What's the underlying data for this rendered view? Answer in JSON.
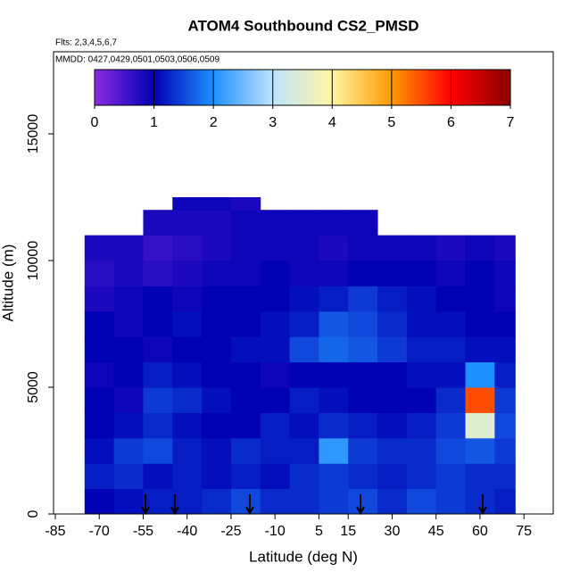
{
  "chart_data": {
    "type": "heatmap",
    "title": "ATOM4 Southbound CS2_PMSD",
    "subtitle": "Flts: 2,3,4,5,6,7",
    "annotation": "MMDD: 0427,0429,0501,0503,0506,0509",
    "x_label": "Latitude (deg N)",
    "y_label": "Altitude (m)",
    "xlim": [
      -85.6,
      85
    ],
    "ylim": [
      0,
      18240
    ],
    "xticks": [
      -85,
      -70,
      -55,
      -40,
      -25,
      -10,
      5,
      15,
      30,
      45,
      60,
      75
    ],
    "yticks": [
      0,
      5000,
      10000,
      15000
    ],
    "x_edges": [
      -75,
      -65,
      -55,
      -45,
      -35,
      -25,
      -15,
      -5,
      5,
      15,
      25,
      35,
      45,
      55,
      65,
      72
    ],
    "y_edges": [
      0,
      1000,
      2000,
      3000,
      4000,
      5000,
      6000,
      7000,
      8000,
      9000,
      10000,
      11000,
      12000,
      12500
    ],
    "z": [
      [
        1.0,
        1.1,
        1.2,
        1.2,
        1.3,
        1.5,
        1.3,
        1.3,
        1.4,
        1.5,
        1.3,
        1.5,
        1.4,
        1.3,
        1.2
      ],
      [
        1.2,
        1.3,
        1.1,
        1.2,
        1.1,
        1.2,
        1.1,
        1.3,
        1.4,
        1.3,
        1.2,
        1.3,
        1.4,
        1.3,
        1.3
      ],
      [
        1.1,
        1.4,
        1.5,
        1.2,
        1.1,
        1.3,
        1.2,
        1.2,
        2.1,
        1.4,
        1.3,
        1.3,
        1.5,
        1.6,
        1.4
      ],
      [
        1.0,
        1.1,
        1.3,
        1.1,
        1.0,
        1.0,
        1.2,
        1.1,
        1.3,
        1.2,
        1.1,
        1.2,
        1.4,
        3.5,
        1.5
      ],
      [
        1.0,
        0.9,
        1.4,
        1.3,
        1.1,
        1.0,
        1.0,
        1.2,
        1.1,
        1.0,
        1.0,
        1.0,
        1.3,
        5.5,
        1.4
      ],
      [
        0.9,
        1.0,
        1.2,
        1.1,
        1.0,
        1.0,
        0.9,
        1.0,
        1.0,
        1.0,
        1.0,
        1.1,
        1.1,
        2.0,
        1.2
      ],
      [
        1.0,
        1.0,
        0.9,
        1.0,
        1.0,
        1.1,
        1.1,
        1.5,
        1.7,
        1.6,
        1.4,
        1.2,
        1.2,
        1.1,
        1.1
      ],
      [
        1.0,
        0.9,
        1.0,
        1.1,
        1.0,
        1.0,
        1.1,
        1.2,
        1.6,
        1.5,
        1.3,
        1.1,
        1.1,
        1.0,
        1.0
      ],
      [
        0.8,
        0.9,
        1.0,
        0.9,
        1.0,
        1.0,
        1.0,
        1.1,
        1.2,
        1.4,
        1.2,
        1.1,
        1.0,
        1.0,
        0.9
      ],
      [
        0.7,
        0.8,
        0.7,
        0.8,
        0.9,
        0.9,
        1.0,
        0.9,
        0.9,
        1.0,
        1.0,
        1.0,
        0.9,
        1.0,
        0.9
      ],
      [
        0.8,
        0.8,
        0.6,
        0.7,
        0.8,
        0.9,
        0.9,
        0.9,
        0.8,
        0.9,
        0.9,
        0.9,
        0.8,
        0.9,
        0.8
      ],
      [
        null,
        null,
        0.8,
        0.8,
        0.8,
        0.9,
        0.9,
        0.9,
        0.9,
        0.9,
        null,
        null,
        null,
        null,
        null
      ],
      [
        null,
        null,
        null,
        0.9,
        0.9,
        0.8,
        null,
        null,
        null,
        null,
        null,
        null,
        null,
        null,
        null
      ]
    ],
    "flight_markers": [
      -54.2,
      -44.2,
      -18.6,
      19.2,
      60.9
    ],
    "colorbar": {
      "lim": [
        0,
        7
      ],
      "ticks": [
        0,
        1,
        2,
        3,
        4,
        5,
        6,
        7
      ],
      "colors": [
        "#8a2be2",
        "#0000b4",
        "#1e90ff",
        "#bfe3ff",
        "#fff6a0",
        "#ff9a00",
        "#ff0000",
        "#8b0000"
      ]
    }
  }
}
